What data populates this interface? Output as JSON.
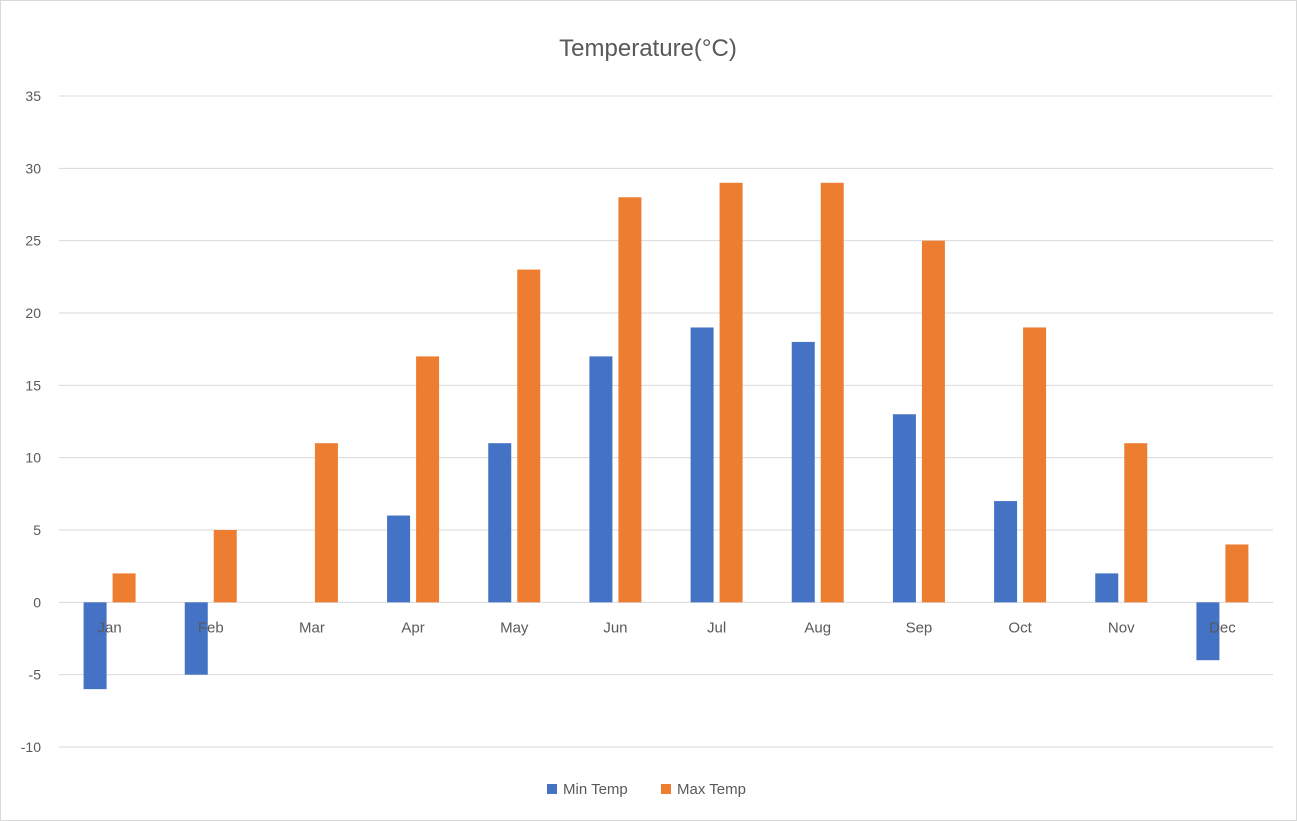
{
  "chart_data": {
    "type": "bar",
    "title": "Temperature(°C)",
    "xlabel": "",
    "ylabel": "",
    "categories": [
      "Jan",
      "Feb",
      "Mar",
      "Apr",
      "May",
      "Jun",
      "Jul",
      "Aug",
      "Sep",
      "Oct",
      "Nov",
      "Dec"
    ],
    "series": [
      {
        "name": "Min Temp",
        "color": "#4472c4",
        "values": [
          -6,
          -5,
          0,
          6,
          11,
          17,
          19,
          18,
          13,
          7,
          2,
          -4
        ]
      },
      {
        "name": "Max Temp",
        "color": "#ed7d31",
        "values": [
          2,
          5,
          11,
          17,
          23,
          28,
          29,
          29,
          25,
          19,
          11,
          4
        ]
      }
    ],
    "ylim": [
      -10,
      35
    ],
    "yticks": [
      -10,
      -5,
      0,
      5,
      10,
      15,
      20,
      25,
      30,
      35
    ],
    "grid": true,
    "legend_position": "bottom"
  }
}
